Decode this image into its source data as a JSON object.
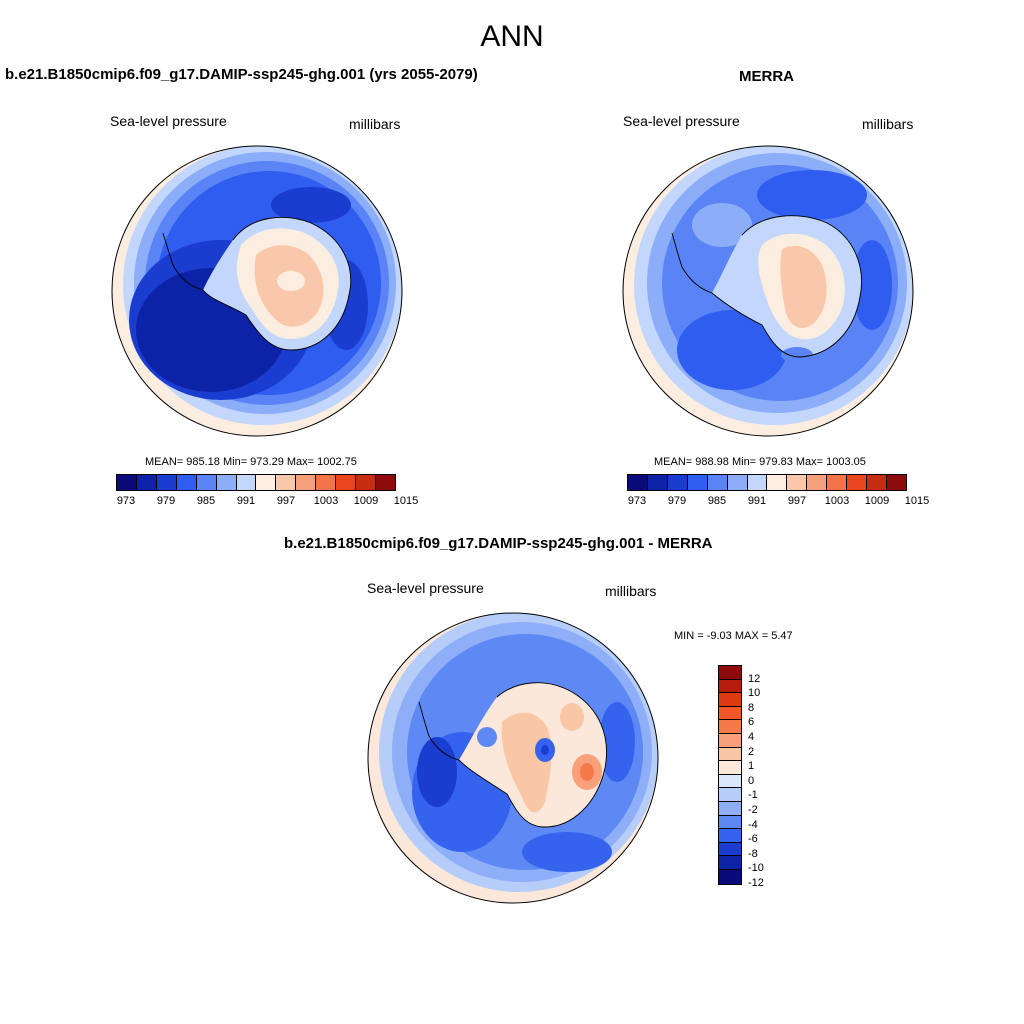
{
  "title": "ANN",
  "panels": {
    "model": {
      "title": "b.e21.B1850cmip6.f09_g17.DAMIP-ssp245-ghg.001 (yrs 2055-2079)",
      "left_label": "Sea-level pressure",
      "right_label": "millibars",
      "stats": "MEAN= 985.18  Min= 973.29  Max= 1002.75"
    },
    "obs": {
      "title": "MERRA",
      "left_label": "Sea-level pressure",
      "right_label": "millibars",
      "stats": "MEAN= 988.98  Min= 979.83  Max= 1003.05"
    },
    "diff": {
      "title": "b.e21.B1850cmip6.f09_g17.DAMIP-ssp245-ghg.001 - MERRA",
      "left_label": "Sea-level pressure",
      "right_label": "millibars",
      "stats": "MIN =  -9.03 MAX =   5.47"
    }
  },
  "colorbar_main": {
    "colors": [
      "#0a0a7a",
      "#0c23a8",
      "#1a3ccf",
      "#2f5df0",
      "#5a84f5",
      "#8cadf8",
      "#c3d6fb",
      "#fbeee0",
      "#f9c8aa",
      "#f5a07a",
      "#f27448",
      "#e9461f",
      "#c52e12",
      "#8e0b0b"
    ],
    "tick_labels": [
      "973",
      "979",
      "985",
      "991",
      "997",
      "1003",
      "1009",
      "1015"
    ]
  },
  "colorbar_diff": {
    "colors": [
      "#8e0b0b",
      "#b81c0c",
      "#de3a12",
      "#f2562a",
      "#f57a4a",
      "#f8a07a",
      "#f9c6a6",
      "#fbe8da",
      "#dbe7fb",
      "#b6cdfa",
      "#8eaff8",
      "#5e89f4",
      "#3563ee",
      "#1a3ccf",
      "#0c23a8",
      "#0a0a7a"
    ],
    "tick_labels": [
      "12",
      "10",
      "8",
      "6",
      "4",
      "2",
      "1",
      "0",
      "-1",
      "-2",
      "-4",
      "-6",
      "-8",
      "-10",
      "-12"
    ]
  }
}
